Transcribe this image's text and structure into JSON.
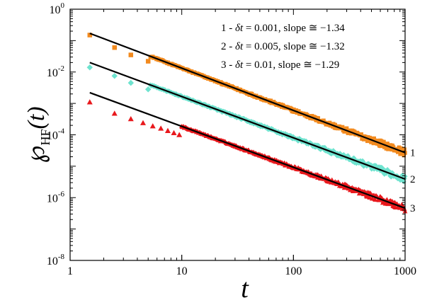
{
  "chart_data": {
    "type": "scatter",
    "xscale": "log",
    "yscale": "log",
    "xlim": [
      1,
      1000
    ],
    "ylim": [
      1e-08,
      1
    ],
    "xlabel": "t",
    "ylabel_symbol": "℘",
    "ylabel_subscript": "HF",
    "ylabel_arg": "(t)",
    "grid": false,
    "legend_placement": "top-right",
    "xticks": [
      {
        "value": 1,
        "label": "1"
      },
      {
        "value": 10,
        "label": "10"
      },
      {
        "value": 100,
        "label": "100"
      },
      {
        "value": 1000,
        "label": "1000"
      }
    ],
    "yticks": [
      {
        "value": 1,
        "base": "10",
        "exp": "0"
      },
      {
        "value": 0.01,
        "base": "10",
        "exp": "-2"
      },
      {
        "value": 0.0001,
        "base": "10",
        "exp": "-4"
      },
      {
        "value": 1e-06,
        "base": "10",
        "exp": "-6"
      },
      {
        "value": 1e-08,
        "base": "10",
        "exp": "-8"
      }
    ],
    "series": [
      {
        "label": "1",
        "legend": "1 - δt = 0.001, slope ≅ −1.34",
        "legend_prefix": "1 - ",
        "legend_var": "δt",
        "legend_suffix": " = 0.001, slope ≅ −1.34",
        "color": "#f28a1e",
        "marker": "square",
        "x_range": [
          1.5,
          1000
        ],
        "fit": {
          "x": [
            1.5,
            1000
          ],
          "y": [
            0.17,
            2.7e-05
          ]
        },
        "points": [
          [
            1.5,
            0.15
          ],
          [
            2.5,
            0.06
          ],
          [
            3.5,
            0.035
          ],
          [
            5,
            0.022
          ]
        ]
      },
      {
        "label": "2",
        "legend": "2 - δt = 0.005, slope ≅ −1.32",
        "legend_prefix": "2 - ",
        "legend_var": "δt",
        "legend_suffix": " = 0.005, slope ≅ −1.32",
        "color": "#6ee3cf",
        "marker": "diamond",
        "x_range": [
          1.5,
          1000
        ],
        "fit": {
          "x": [
            1.5,
            1000
          ],
          "y": [
            0.02,
            3.9e-06
          ]
        },
        "points": [
          [
            1.5,
            0.014
          ],
          [
            2.5,
            0.0075
          ],
          [
            3.5,
            0.0045
          ],
          [
            5,
            0.0028
          ]
        ]
      },
      {
        "label": "3",
        "legend": "3 - δt = 0.01, slope ≅ −1.29",
        "legend_prefix": "3 - ",
        "legend_var": "δt",
        "legend_suffix": " = 0.01, slope ≅ −1.29",
        "color": "#e8181c",
        "marker": "triangle",
        "x_range": [
          1.5,
          1000
        ],
        "fit": {
          "x": [
            1.5,
            1000
          ],
          "y": [
            0.0022,
            4.6e-07
          ]
        },
        "points": [
          [
            1.5,
            0.0011
          ],
          [
            2.5,
            0.00048
          ],
          [
            3.5,
            0.00032
          ],
          [
            4.5,
            0.00024
          ],
          [
            5.5,
            0.00019
          ],
          [
            6.5,
            0.00016
          ],
          [
            7.5,
            0.000135
          ],
          [
            8.5,
            0.000115
          ],
          [
            9.5,
            0.0001
          ]
        ]
      }
    ]
  }
}
